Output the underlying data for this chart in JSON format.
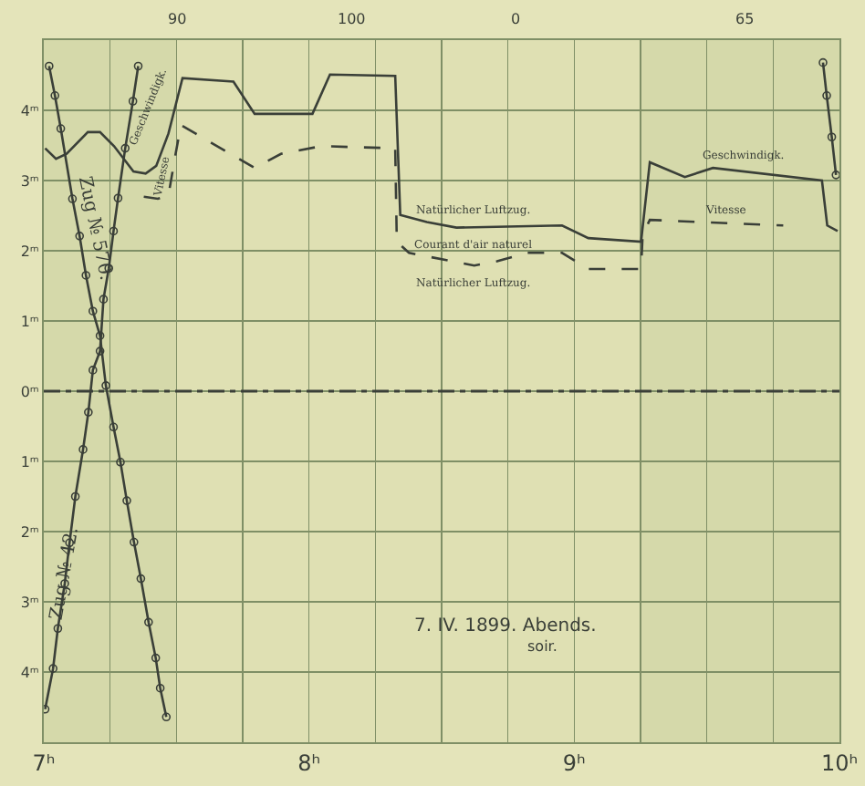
{
  "chart_data": {
    "type": "line",
    "xlim": [
      7,
      10
    ],
    "ylim": [
      -5,
      5
    ],
    "xticks": [
      {
        "value": 7,
        "label": "7ʰ"
      },
      {
        "value": 7.25,
        "label": null
      },
      {
        "value": 7.5,
        "label": null
      },
      {
        "value": 7.75,
        "label": null
      },
      {
        "value": 8,
        "label": "8ʰ"
      },
      {
        "value": 8.25,
        "label": null
      },
      {
        "value": 8.5,
        "label": null
      },
      {
        "value": 8.75,
        "label": null
      },
      {
        "value": 9,
        "label": "9ʰ"
      },
      {
        "value": 9.25,
        "label": null
      },
      {
        "value": 9.5,
        "label": null
      },
      {
        "value": 9.75,
        "label": null
      },
      {
        "value": 10,
        "label": "10ʰ"
      }
    ],
    "yticks": [
      {
        "value": 4,
        "label": "4ᵐ"
      },
      {
        "value": 3,
        "label": "3ᵐ"
      },
      {
        "value": 2,
        "label": "2ᵐ"
      },
      {
        "value": 1,
        "label": "1ᵐ"
      },
      {
        "value": 0,
        "label": "0ᵐ"
      },
      {
        "value": -1,
        "label": "1ᵐ"
      },
      {
        "value": -2,
        "label": "2ᵐ"
      },
      {
        "value": -3,
        "label": "3ᵐ"
      },
      {
        "value": -4,
        "label": "4ᵐ"
      }
    ],
    "grid": true,
    "bands": [
      {
        "axis": "x",
        "from": 7,
        "to": 7.5,
        "color": "#cfd3a4"
      },
      {
        "axis": "x",
        "from": 9.25,
        "to": 10,
        "color": "#cfd3a4"
      }
    ],
    "ref_lines": [
      {
        "axis": "y",
        "value": 0,
        "line_style": "dashed",
        "color": "#3a3f38"
      }
    ],
    "series": [
      {
        "color": "#3a3f38",
        "line_style": "solid",
        "marker": "none",
        "x": [
          7.005,
          7.046,
          7.086,
          7.166,
          7.212,
          7.265,
          7.338,
          7.384,
          7.424,
          7.47,
          7.523,
          7.715,
          7.795,
          8.013,
          8.079,
          8.325,
          8.344,
          8.444,
          8.556,
          8.954,
          9.053,
          9.252,
          9.285,
          9.417,
          9.523,
          9.934,
          9.954,
          9.993
        ],
        "values": [
          3.46,
          3.31,
          3.38,
          3.69,
          3.69,
          3.49,
          3.13,
          3.1,
          3.21,
          3.67,
          4.46,
          4.41,
          3.95,
          3.95,
          4.51,
          4.49,
          2.51,
          2.41,
          2.33,
          2.36,
          2.18,
          2.13,
          3.26,
          3.05,
          3.18,
          3.0,
          2.36,
          2.28
        ]
      },
      {
        "color": "#3a3f38",
        "line_style": "dashed",
        "marker": "none",
        "x": [
          7.377,
          7.43,
          7.47,
          7.497,
          7.517,
          7.795,
          7.894,
          8.046,
          8.325,
          8.331,
          8.377,
          8.623,
          8.709,
          8.821,
          8.954,
          9.053,
          9.252,
          9.258,
          9.285,
          9.788
        ],
        "values": [
          2.77,
          2.74,
          2.79,
          3.38,
          3.79,
          3.18,
          3.38,
          3.49,
          3.46,
          2.13,
          1.97,
          1.79,
          1.85,
          1.97,
          1.97,
          1.74,
          1.74,
          2.23,
          2.44,
          2.36
        ]
      },
      {
        "color": "#3a3f38",
        "line_style": "solid",
        "marker": "circle",
        "x": [
          7.02,
          7.042,
          7.064,
          7.108,
          7.135,
          7.159,
          7.185,
          7.212,
          7.234,
          7.263,
          7.289,
          7.313,
          7.34,
          7.366,
          7.395,
          7.422,
          7.439,
          7.462
        ],
        "values": [
          4.63,
          4.21,
          3.74,
          2.74,
          2.21,
          1.65,
          1.14,
          0.79,
          0.08,
          -0.51,
          -1.01,
          -1.56,
          -2.15,
          -2.67,
          -3.29,
          -3.8,
          -4.23,
          -4.64
        ]
      },
      {
        "color": "#3a3f38",
        "line_style": "solid",
        "marker": "circle",
        "x": [
          7.005,
          7.035,
          7.053,
          7.079,
          7.097,
          7.119,
          7.148,
          7.168,
          7.185,
          7.212,
          7.225,
          7.245,
          7.263,
          7.28,
          7.307,
          7.336,
          7.356
        ],
        "values": [
          -4.53,
          -3.95,
          -3.38,
          -2.74,
          -2.16,
          -1.5,
          -0.83,
          -0.3,
          0.3,
          0.57,
          1.31,
          1.75,
          2.28,
          2.75,
          3.46,
          4.13,
          4.63
        ]
      },
      {
        "color": "#3a3f38",
        "line_style": "solid",
        "marker": "circle",
        "x": [
          9.938,
          9.952,
          9.971,
          9.987
        ],
        "values": [
          4.68,
          4.21,
          3.62,
          3.08
        ]
      }
    ],
    "annotations": [
      "Geschwindigk.",
      "Vitesse",
      "Natürlicher Luftzug.",
      "Courant d'air naturel",
      "Natürlicher Luftzug.",
      "Geschwindigk.",
      "Vitesse",
      "Zug № 570.",
      "Zug № 42.",
      "90",
      "100",
      "0",
      "65",
      "7. IV. 1899. Abends.",
      "soir."
    ]
  }
}
